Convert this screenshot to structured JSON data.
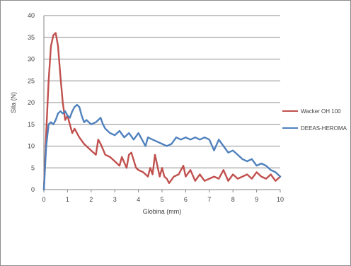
{
  "chart_data": {
    "type": "line",
    "title": "",
    "xlabel": "Globina (mm)",
    "ylabel": "Sila (N)",
    "xlim": [
      0,
      10
    ],
    "ylim": [
      0,
      40
    ],
    "x_ticks": [
      "0",
      "1",
      "2",
      "3",
      "4",
      "5",
      "6",
      "7",
      "8",
      "9",
      "10"
    ],
    "y_ticks": [
      "0",
      "5",
      "10",
      "15",
      "20",
      "25",
      "30",
      "35",
      "40"
    ],
    "grid": "horizontal",
    "legend_position": "right",
    "series": [
      {
        "name": "Wacker OH 100",
        "color": "#c0504d",
        "x": [
          0,
          0.1,
          0.2,
          0.3,
          0.4,
          0.5,
          0.6,
          0.7,
          0.8,
          0.9,
          1.0,
          1.1,
          1.2,
          1.3,
          1.5,
          1.7,
          1.8,
          2.0,
          2.2,
          2.3,
          2.4,
          2.6,
          2.8,
          3.0,
          3.2,
          3.3,
          3.5,
          3.6,
          3.7,
          3.9,
          4.0,
          4.2,
          4.4,
          4.5,
          4.6,
          4.7,
          4.9,
          5.0,
          5.1,
          5.2,
          5.3,
          5.5,
          5.7,
          5.9,
          6.0,
          6.2,
          6.4,
          6.6,
          6.8,
          7.0,
          7.2,
          7.4,
          7.6,
          7.8,
          8.0,
          8.2,
          8.4,
          8.6,
          8.8,
          9.0,
          9.2,
          9.4,
          9.6,
          9.8,
          10.0
        ],
        "values": [
          0,
          13,
          25,
          33,
          35.5,
          36,
          33,
          26,
          20,
          16,
          17,
          15,
          13,
          14,
          12,
          10.5,
          10,
          9,
          8,
          11.5,
          10.5,
          8,
          7.5,
          6.5,
          5.5,
          7.5,
          5,
          8,
          8.5,
          5,
          4.5,
          4,
          3,
          5,
          3.5,
          8,
          3,
          5,
          3,
          2.5,
          1.5,
          3,
          3.5,
          5.5,
          3,
          4.5,
          2,
          3.5,
          2,
          2.5,
          3,
          2.5,
          4.5,
          2,
          3.5,
          2.5,
          3,
          3.5,
          2.5,
          4,
          3,
          2.5,
          3.5,
          2,
          3
        ]
      },
      {
        "name": "DEEAS-HEROMA",
        "color": "#4f81bd",
        "x": [
          0,
          0.1,
          0.2,
          0.3,
          0.4,
          0.5,
          0.6,
          0.7,
          0.8,
          0.9,
          1.0,
          1.1,
          1.2,
          1.3,
          1.4,
          1.5,
          1.6,
          1.7,
          1.8,
          2.0,
          2.2,
          2.4,
          2.5,
          2.6,
          2.8,
          3.0,
          3.2,
          3.4,
          3.6,
          3.8,
          4.0,
          4.2,
          4.3,
          4.4,
          4.6,
          4.8,
          5.0,
          5.2,
          5.4,
          5.6,
          5.8,
          6.0,
          6.2,
          6.4,
          6.6,
          6.8,
          7.0,
          7.2,
          7.4,
          7.6,
          7.8,
          8.0,
          8.2,
          8.4,
          8.6,
          8.8,
          9.0,
          9.2,
          9.4,
          9.6,
          9.8,
          10.0
        ],
        "values": [
          0,
          10,
          15,
          15.5,
          15,
          16,
          17.5,
          18,
          17.5,
          18,
          17,
          16.5,
          18,
          19,
          19.5,
          19,
          17,
          15.5,
          16,
          15,
          15.5,
          16.5,
          15,
          14,
          13,
          12.5,
          13.5,
          12,
          13,
          11.5,
          13,
          11,
          10,
          12,
          11.5,
          11,
          10.5,
          10,
          10.5,
          12,
          11.5,
          12,
          11.5,
          12,
          11.5,
          12,
          11.5,
          9,
          11.5,
          10,
          8.5,
          9,
          8,
          7,
          6.5,
          7,
          5.5,
          6,
          5.5,
          4.5,
          4,
          3
        ]
      }
    ]
  }
}
